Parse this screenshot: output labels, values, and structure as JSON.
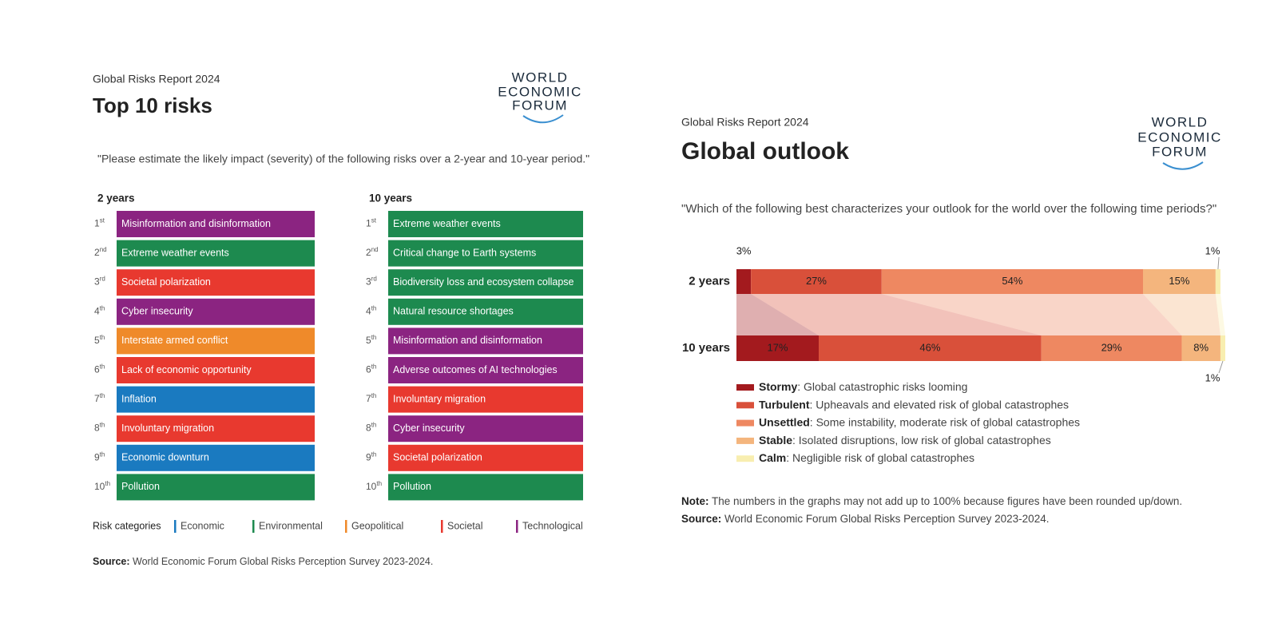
{
  "top10": {
    "report": "Global Risks Report 2024",
    "title": "Top 10 risks",
    "logo": [
      "WORLD",
      "ECONOMIC",
      "FORUM"
    ],
    "question": "\"Please estimate the likely impact (severity) of the following risks over a 2-year and 10-year period.\"",
    "columns": [
      {
        "heading": "2 years",
        "items": [
          {
            "rank": 1,
            "suffix": "st",
            "label": "Misinformation and disinformation",
            "color": "#8b2481"
          },
          {
            "rank": 2,
            "suffix": "nd",
            "label": "Extreme weather events",
            "color": "#1d8a4f"
          },
          {
            "rank": 3,
            "suffix": "rd",
            "label": "Societal polarization",
            "color": "#e8392f"
          },
          {
            "rank": 4,
            "suffix": "th",
            "label": "Cyber insecurity",
            "color": "#8b2481"
          },
          {
            "rank": 5,
            "suffix": "th",
            "label": "Interstate armed conflict",
            "color": "#ef8a2a"
          },
          {
            "rank": 6,
            "suffix": "th",
            "label": "Lack of economic opportunity",
            "color": "#e8392f"
          },
          {
            "rank": 7,
            "suffix": "th",
            "label": "Inflation",
            "color": "#1a7ac0"
          },
          {
            "rank": 8,
            "suffix": "th",
            "label": "Involuntary migration",
            "color": "#e8392f"
          },
          {
            "rank": 9,
            "suffix": "th",
            "label": "Economic downturn",
            "color": "#1a7ac0"
          },
          {
            "rank": 10,
            "suffix": "th",
            "label": "Pollution",
            "color": "#1d8a4f"
          }
        ]
      },
      {
        "heading": "10 years",
        "items": [
          {
            "rank": 1,
            "suffix": "st",
            "label": "Extreme weather events",
            "color": "#1d8a4f"
          },
          {
            "rank": 2,
            "suffix": "nd",
            "label": "Critical change to Earth systems",
            "color": "#1d8a4f"
          },
          {
            "rank": 3,
            "suffix": "rd",
            "label": "Biodiversity loss and ecosystem collapse",
            "color": "#1d8a4f"
          },
          {
            "rank": 4,
            "suffix": "th",
            "label": "Natural resource shortages",
            "color": "#1d8a4f"
          },
          {
            "rank": 5,
            "suffix": "th",
            "label": "Misinformation and disinformation",
            "color": "#8b2481"
          },
          {
            "rank": 6,
            "suffix": "th",
            "label": "Adverse outcomes of AI technologies",
            "color": "#8b2481"
          },
          {
            "rank": 7,
            "suffix": "th",
            "label": "Involuntary migration",
            "color": "#e8392f"
          },
          {
            "rank": 8,
            "suffix": "th",
            "label": "Cyber insecurity",
            "color": "#8b2481"
          },
          {
            "rank": 9,
            "suffix": "th",
            "label": "Societal polarization",
            "color": "#e8392f"
          },
          {
            "rank": 10,
            "suffix": "th",
            "label": "Pollution",
            "color": "#1d8a4f"
          }
        ]
      }
    ],
    "legend_label": "Risk categories",
    "categories": [
      {
        "name": "Economic",
        "color": "#1a7ac0"
      },
      {
        "name": "Environmental",
        "color": "#1d8a4f"
      },
      {
        "name": "Geopolitical",
        "color": "#ef8a2a"
      },
      {
        "name": "Societal",
        "color": "#e8392f"
      },
      {
        "name": "Technological",
        "color": "#8b2481"
      }
    ],
    "source_label": "Source:",
    "source": "World Economic Forum Global Risks Perception Survey 2023-2024."
  },
  "chart_data": {
    "type": "stacked_bar",
    "report": "Global Risks Report 2024",
    "title": "Global outlook",
    "logo": [
      "WORLD",
      "ECONOMIC",
      "FORUM"
    ],
    "question": "\"Which of the following best characterizes your outlook for the world over the following time periods?\"",
    "categories": [
      "2 years",
      "10 years"
    ],
    "xlim": [
      0,
      101
    ],
    "series": [
      {
        "name": "Stormy",
        "description": ": Global catastrophic risks looming",
        "color": "#a31a1e",
        "label_color": "#ffffff",
        "values": [
          3,
          17
        ],
        "value_labels": [
          "3%",
          "17%"
        ]
      },
      {
        "name": "Turbulent",
        "description": ": Upheavals and elevated risk of global catastrophes",
        "color": "#d9503a",
        "label_color": "#f6d0c6",
        "values": [
          27,
          46
        ],
        "value_labels": [
          "27%",
          "46%"
        ]
      },
      {
        "name": "Unsettled",
        "description": ": Some instability, moderate risk of global catastrophes",
        "color": "#ee8861",
        "label_color": "#fbdccd",
        "values": [
          54,
          29
        ],
        "value_labels": [
          "54%",
          "29%"
        ]
      },
      {
        "name": "Stable",
        "description": ": Isolated disruptions, low risk of global catastrophes",
        "color": "#f4b57d",
        "label_color": "#444444",
        "values": [
          15,
          8
        ],
        "value_labels": [
          "15%",
          "8%"
        ]
      },
      {
        "name": "Calm",
        "description": ": Negligible risk of global catastrophes",
        "color": "#f8eeb0",
        "label_color": "#444444",
        "values": [
          1,
          1
        ],
        "value_labels": [
          "1%",
          "1%"
        ]
      }
    ],
    "note_label": "Note:",
    "note": "The numbers in the graphs may not add up to 100% because figures have been rounded up/down.",
    "source_label": "Source:",
    "source": "World Economic Forum Global Risks Perception Survey 2023-2024."
  }
}
